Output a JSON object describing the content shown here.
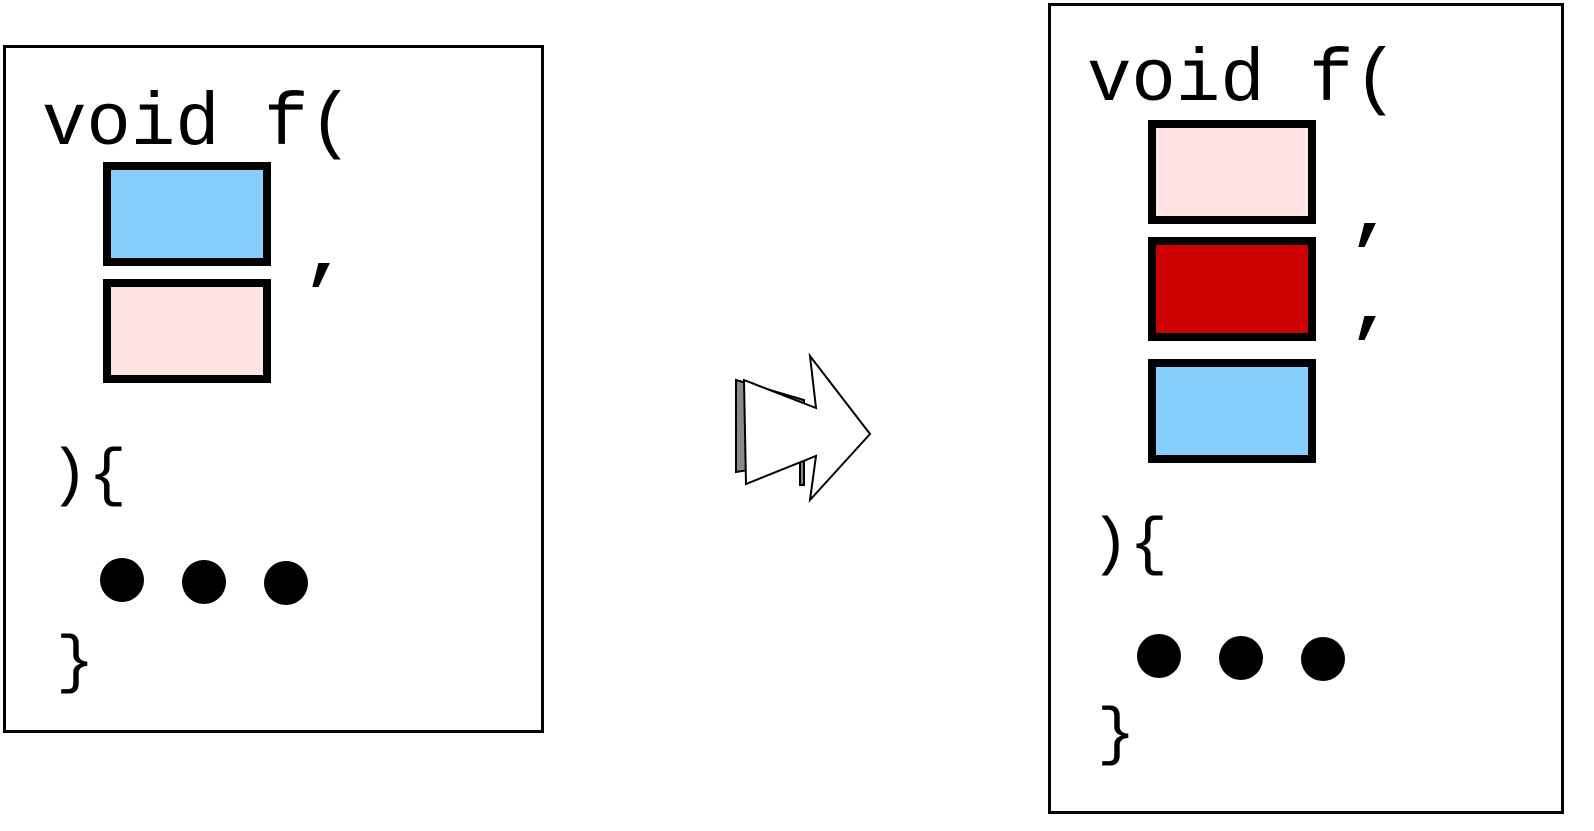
{
  "left_panel": {
    "signature": "void f(",
    "comma": ",",
    "body_open": "){",
    "body_close": "}",
    "params": [
      {
        "role": "param-1",
        "color": "#87CEFF"
      },
      {
        "role": "param-2",
        "color": "#FFE2E4"
      }
    ]
  },
  "right_panel": {
    "signature": "void f(",
    "comma_1": ",",
    "comma_2": ",",
    "body_open": "){",
    "body_close": "}",
    "params": [
      {
        "role": "param-1",
        "color": "#FFE2E4"
      },
      {
        "role": "param-2",
        "color": "#CC0000"
      },
      {
        "role": "param-3",
        "color": "#87CEFF"
      }
    ]
  },
  "arrow": {
    "fill": "#ffffff",
    "shadow": "#8a8a8a"
  }
}
